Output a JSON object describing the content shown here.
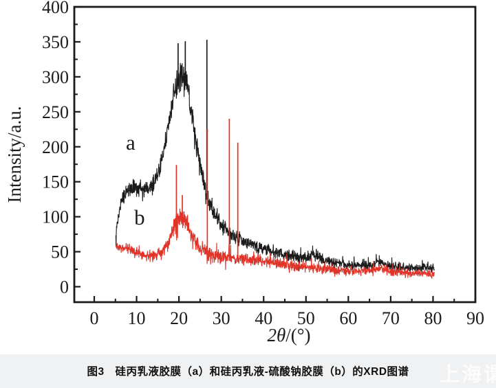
{
  "figure": {
    "caption": "图3　硅丙乳液胶膜（a）和硅丙乳液-硫酸钠胶膜（b）的XRD图谱",
    "watermark": "上海谓"
  },
  "chart_data": {
    "type": "line",
    "title": "",
    "xlabel": "2θ/(°)",
    "xlabel_italic": "2θ",
    "xlabel_rest": "/(°)",
    "ylabel": "Intensity/a.u.",
    "xlim": [
      -5,
      90.3
    ],
    "ylim": [
      -22,
      400
    ],
    "x_ticks_major": [
      0,
      10,
      20,
      30,
      40,
      50,
      60,
      70,
      80,
      90
    ],
    "x_ticks_minor": [
      5,
      15,
      25,
      35,
      45,
      55,
      65,
      75,
      85
    ],
    "y_ticks_major": [
      0,
      50,
      100,
      150,
      200,
      250,
      300,
      350,
      400
    ],
    "y_ticks_minor": [
      25,
      75,
      125,
      175,
      225,
      275,
      325,
      375
    ],
    "grid": false,
    "legend_style": "inline letter labels on curves",
    "series": [
      {
        "name": "a",
        "label": "a",
        "description": "硅丙乳液胶膜",
        "color": "#1b1b1b",
        "label_pos": [
          8.6,
          196
        ],
        "noise_seed": 13,
        "x_range": [
          5.1,
          80.3
        ],
        "anchors": [
          [
            5.1,
            74
          ],
          [
            5.5,
            96
          ],
          [
            6,
            112
          ],
          [
            6.5,
            122
          ],
          [
            7,
            129
          ],
          [
            8,
            138
          ],
          [
            9,
            143
          ],
          [
            10,
            140
          ],
          [
            11,
            143
          ],
          [
            12,
            139
          ],
          [
            13,
            142
          ],
          [
            14,
            148
          ],
          [
            15,
            162
          ],
          [
            16,
            182
          ],
          [
            17,
            212
          ],
          [
            18,
            246
          ],
          [
            19,
            278
          ],
          [
            20,
            296
          ],
          [
            20.6,
            304
          ],
          [
            21.2,
            301
          ],
          [
            21.8,
            290
          ],
          [
            22.5,
            268
          ],
          [
            23,
            250
          ],
          [
            24,
            210
          ],
          [
            25,
            175
          ],
          [
            26,
            145
          ],
          [
            27,
            122
          ],
          [
            28,
            107
          ],
          [
            29,
            97
          ],
          [
            30,
            90
          ],
          [
            31,
            84
          ],
          [
            32,
            78
          ],
          [
            33,
            73
          ],
          [
            34,
            69
          ],
          [
            35,
            66
          ],
          [
            36,
            63
          ],
          [
            37,
            61
          ],
          [
            38,
            58
          ],
          [
            39,
            56
          ],
          [
            40,
            54
          ],
          [
            42,
            50
          ],
          [
            44,
            47
          ],
          [
            46,
            45
          ],
          [
            48,
            43
          ],
          [
            50,
            42
          ],
          [
            52,
            46
          ],
          [
            54,
            39
          ],
          [
            56,
            36
          ],
          [
            58,
            33
          ],
          [
            60,
            31
          ],
          [
            62,
            30
          ],
          [
            64,
            30
          ],
          [
            66,
            31
          ],
          [
            68,
            35
          ],
          [
            70,
            29
          ],
          [
            72,
            28
          ],
          [
            74,
            27
          ],
          [
            76,
            27
          ],
          [
            78,
            28
          ],
          [
            80.3,
            26
          ]
        ],
        "noise_amp": [
          [
            5.1,
            9
          ],
          [
            7,
            12
          ],
          [
            10,
            14
          ],
          [
            14,
            14
          ],
          [
            17,
            16
          ],
          [
            19,
            22
          ],
          [
            20,
            26
          ],
          [
            21,
            26
          ],
          [
            22,
            22
          ],
          [
            23,
            18
          ],
          [
            25,
            15
          ],
          [
            27,
            13
          ],
          [
            30,
            12
          ],
          [
            35,
            11
          ],
          [
            40,
            10
          ],
          [
            45,
            10
          ],
          [
            50,
            10
          ],
          [
            55,
            9
          ],
          [
            60,
            8
          ],
          [
            70,
            8
          ],
          [
            80.3,
            7
          ]
        ],
        "spikes": [
          [
            19.8,
            348
          ],
          [
            21.5,
            351
          ],
          [
            26.6,
            353
          ]
        ]
      },
      {
        "name": "b",
        "label": "b",
        "description": "硅丙乳液-硫酸钠胶膜",
        "color": "#e13328",
        "label_pos": [
          10.7,
          89
        ],
        "noise_seed": 57,
        "x_range": [
          5.1,
          80.3
        ],
        "anchors": [
          [
            5.1,
            58
          ],
          [
            6,
            57
          ],
          [
            7,
            55
          ],
          [
            8,
            54
          ],
          [
            9,
            52
          ],
          [
            10,
            49
          ],
          [
            11,
            47
          ],
          [
            12,
            45
          ],
          [
            13,
            44
          ],
          [
            14,
            44
          ],
          [
            15,
            46
          ],
          [
            16,
            50
          ],
          [
            17,
            57
          ],
          [
            18,
            70
          ],
          [
            19,
            88
          ],
          [
            19.7,
            100
          ],
          [
            20.4,
            102
          ],
          [
            21,
            98
          ],
          [
            22,
            88
          ],
          [
            23,
            73
          ],
          [
            24,
            62
          ],
          [
            25,
            56
          ],
          [
            26,
            52
          ],
          [
            27,
            48
          ],
          [
            28,
            45
          ],
          [
            29,
            44
          ],
          [
            30,
            43
          ],
          [
            31,
            43
          ],
          [
            32,
            42
          ],
          [
            33,
            41
          ],
          [
            34,
            40
          ],
          [
            35,
            40
          ],
          [
            36,
            39
          ],
          [
            38,
            38
          ],
          [
            40,
            37
          ],
          [
            42,
            35
          ],
          [
            44,
            33
          ],
          [
            46,
            31
          ],
          [
            48,
            29
          ],
          [
            50,
            28
          ],
          [
            52,
            27
          ],
          [
            54,
            26
          ],
          [
            56,
            25
          ],
          [
            58,
            24
          ],
          [
            60,
            23
          ],
          [
            62,
            22
          ],
          [
            64,
            22
          ],
          [
            66,
            23
          ],
          [
            68,
            26
          ],
          [
            70,
            21
          ],
          [
            72,
            20
          ],
          [
            74,
            19
          ],
          [
            76,
            19
          ],
          [
            78,
            19
          ],
          [
            80.3,
            17
          ]
        ],
        "noise_amp": [
          [
            5.1,
            8
          ],
          [
            8,
            9
          ],
          [
            12,
            9
          ],
          [
            16,
            10
          ],
          [
            18,
            14
          ],
          [
            19,
            18
          ],
          [
            20,
            20
          ],
          [
            21,
            18
          ],
          [
            22,
            14
          ],
          [
            24,
            12
          ],
          [
            26,
            13
          ],
          [
            28,
            14
          ],
          [
            30,
            12
          ],
          [
            34,
            10
          ],
          [
            38,
            10
          ],
          [
            42,
            9
          ],
          [
            46,
            9
          ],
          [
            50,
            8
          ],
          [
            55,
            8
          ],
          [
            60,
            8
          ],
          [
            70,
            8
          ],
          [
            80.3,
            7
          ]
        ],
        "spikes": [
          [
            19.4,
            174
          ],
          [
            20.8,
            131
          ],
          [
            26.7,
            226
          ],
          [
            31.9,
            240
          ],
          [
            33.9,
            206
          ]
        ]
      }
    ]
  }
}
